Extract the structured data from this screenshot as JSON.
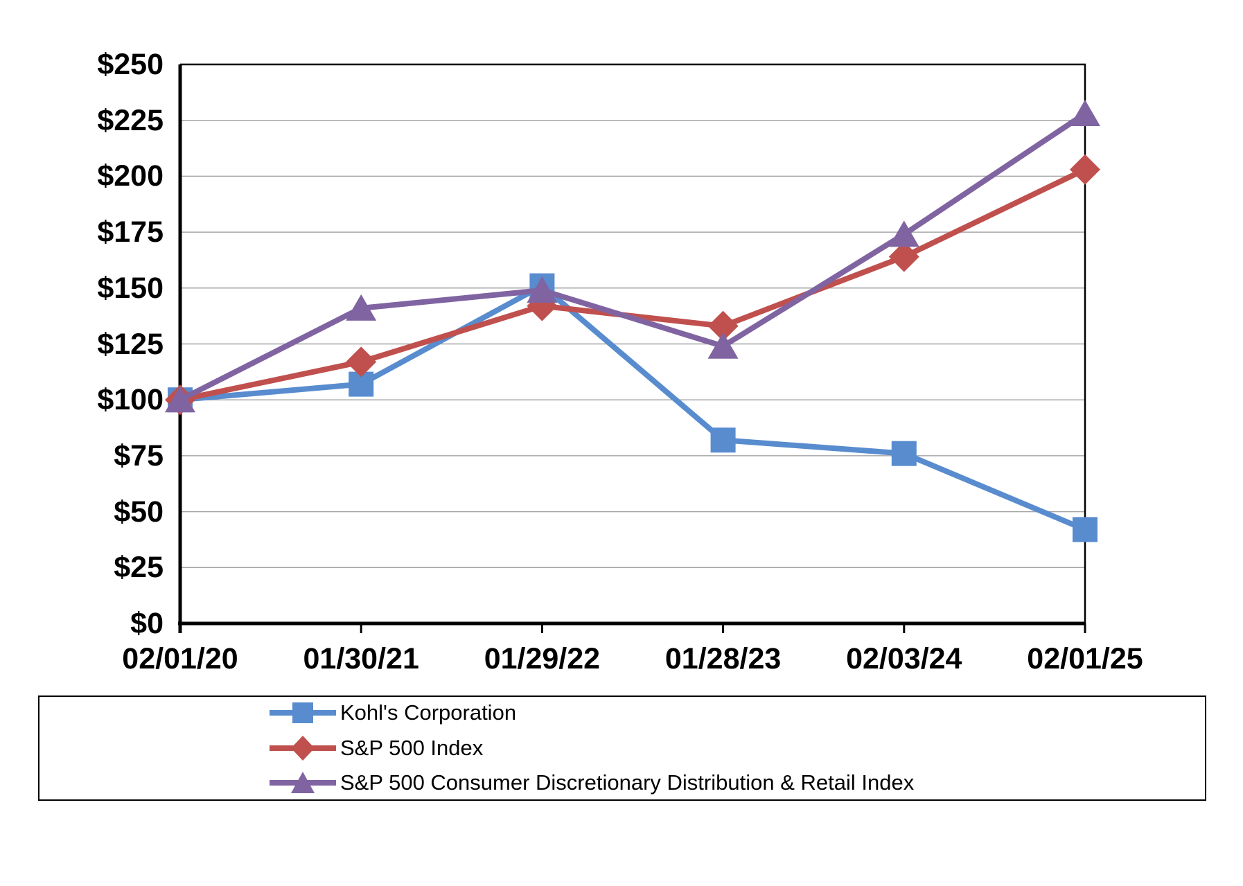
{
  "chart_data": {
    "type": "line",
    "title": "",
    "xlabel": "",
    "ylabel": "",
    "categories": [
      "02/01/20",
      "01/30/21",
      "01/29/22",
      "01/28/23",
      "02/03/24",
      "02/01/25"
    ],
    "series": [
      {
        "name": "Kohl's Corporation",
        "marker": "square",
        "color": "#588CCF",
        "values": [
          100,
          107,
          151,
          82,
          76,
          42
        ]
      },
      {
        "name": "S&P 500 Index",
        "marker": "diamond",
        "color": "#C0504D",
        "values": [
          100,
          117,
          142,
          133,
          164,
          203
        ]
      },
      {
        "name": "S&P 500 Consumer Discretionary Distribution & Retail Index",
        "marker": "triangle",
        "color": "#8064A2",
        "values": [
          100,
          141,
          149,
          124,
          174,
          228
        ]
      }
    ],
    "ylim": [
      0,
      250
    ],
    "ytick_step": 25,
    "ytick_labels": [
      "$0",
      "$25",
      "$50",
      "$75",
      "$100",
      "$125",
      "$150",
      "$175",
      "$200",
      "$225",
      "$250"
    ],
    "grid": true,
    "legend_position": "bottom"
  },
  "colors": {
    "axis": "#000000",
    "gridline": "#A6A6A6",
    "background": "#FFFFFF",
    "legend_border": "#000000"
  }
}
